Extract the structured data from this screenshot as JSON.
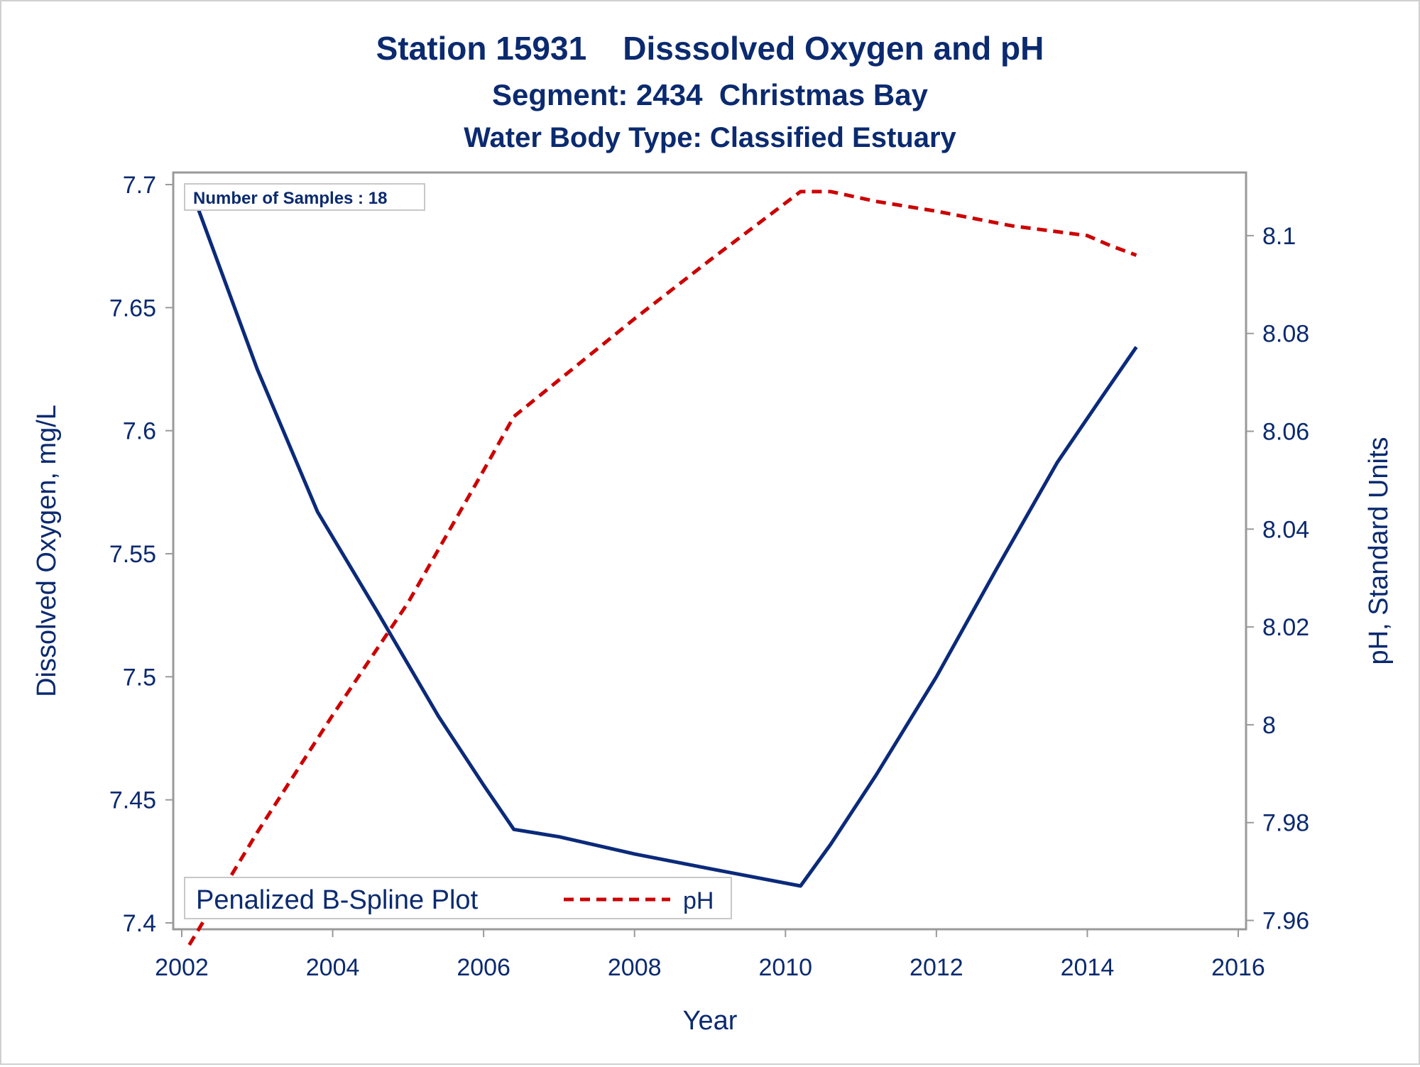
{
  "colors": {
    "text": "#0b2a6f",
    "axis": "#9a9a9a",
    "oxygen_line": "#0b2a7a",
    "ph_line": "#cc0000"
  },
  "chart_data": {
    "type": "line",
    "title": "Station 15931    Disssolved Oxygen and pH",
    "subtitle": "Segment: 2434  Christmas Bay",
    "subtitle2": "Water Body Type: Classified Estuary",
    "xlabel": "Year",
    "ylabel": "Dissolved Oxygen, mg/L",
    "y2label": "pH, Standard Units",
    "xlim": [
      2002,
      2016
    ],
    "ylim": [
      7.4,
      7.7
    ],
    "y2lim": [
      7.955,
      8.11
    ],
    "x_ticks": [
      "2002",
      "2004",
      "2006",
      "2008",
      "2010",
      "2012",
      "2014",
      "2016"
    ],
    "y_ticks": [
      "7.4",
      "7.45",
      "7.5",
      "7.55",
      "7.6",
      "7.65",
      "7.7"
    ],
    "y2_ticks": [
      "7.96",
      "7.98",
      "8",
      "8.02",
      "8.04",
      "8.06",
      "8.08",
      "8.1"
    ],
    "annotation": "Number of Samples : 18",
    "legend": {
      "title": "Penalized B-Spline Plot",
      "entries": [
        "pH"
      ],
      "placement": "bottom-left"
    },
    "grid": false,
    "series": [
      {
        "axis": "left",
        "style": "solid",
        "x": [
          2002.1,
          2003.0,
          2003.8,
          2004.6,
          2005.4,
          2006.0,
          2006.4,
          2007.0,
          2008.0,
          2009.0,
          2010.2,
          2010.6,
          2011.2,
          2012.0,
          2012.8,
          2013.6,
          2014.2,
          2014.65
        ],
        "values": [
          7.7,
          7.625,
          7.567,
          7.526,
          7.484,
          7.456,
          7.438,
          7.435,
          7.428,
          7.422,
          7.415,
          7.432,
          7.46,
          7.5,
          7.544,
          7.587,
          7.614,
          7.634
        ]
      },
      {
        "name": "pH",
        "axis": "right",
        "style": "dashed",
        "x": [
          2002.1,
          2003.0,
          2004.0,
          2005.0,
          2006.0,
          2006.4,
          2007.2,
          2008.0,
          2009.0,
          2010.2,
          2010.6,
          2011.2,
          2012.0,
          2013.0,
          2014.0,
          2014.3,
          2014.65
        ],
        "values": [
          7.955,
          7.978,
          8.002,
          8.025,
          8.052,
          8.063,
          8.073,
          8.083,
          8.095,
          8.109,
          8.109,
          8.107,
          8.105,
          8.102,
          8.1,
          8.098,
          8.096
        ]
      }
    ]
  }
}
